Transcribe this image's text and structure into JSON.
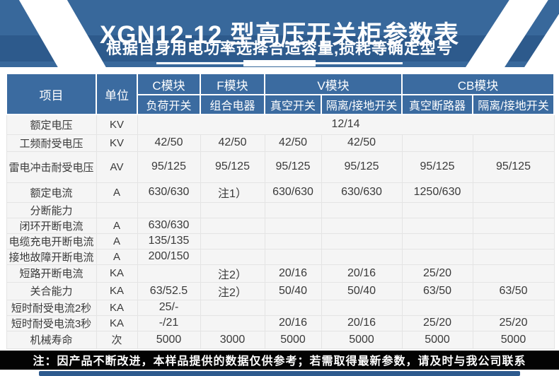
{
  "banner": {
    "title": "XGN12-12 型高压开关柜参数表",
    "subtitle": "根据自身用电功率选择合适容量,损耗等确定型号",
    "bg_color": "#38689b",
    "band_color": "#2d5a8c"
  },
  "table": {
    "header": {
      "item": "项目",
      "unit": "单位",
      "groups": [
        {
          "label": "C模块",
          "subs": [
            "负荷开关"
          ]
        },
        {
          "label": "F模块",
          "subs": [
            "组合电器"
          ]
        },
        {
          "label": "V模块",
          "subs": [
            "真空开关",
            "隔离/接地开关"
          ]
        },
        {
          "label": "CB模块",
          "subs": [
            "真空断路器",
            "隔离/接地开关"
          ]
        }
      ],
      "header_color": "#3b6ba0"
    },
    "rows": [
      {
        "label": "额定电压",
        "unit": "KV",
        "merged": "12/14"
      },
      {
        "label": "工频耐受电压",
        "unit": "KV",
        "values": [
          "42/50",
          "42/50",
          "42/50",
          "42/50",
          "",
          ""
        ]
      },
      {
        "label": "雷电冲击耐受电压",
        "unit": "AV",
        "values": [
          "95/125",
          "95/125",
          "95/125",
          "95/125",
          "95/125",
          "95/125"
        ]
      },
      {
        "label": "额定电流",
        "unit": "A",
        "values": [
          "630/630",
          "注1）",
          "630/630",
          "630/630",
          "1250/630",
          ""
        ]
      },
      {
        "label": "分断能力",
        "unit": "",
        "values": [
          "",
          "",
          "",
          "",
          "",
          ""
        ]
      },
      {
        "label": "闭环开断电流",
        "unit": "A",
        "values": [
          "630/630",
          "",
          "",
          "",
          "",
          ""
        ]
      },
      {
        "label": "电缆充电开断电流",
        "unit": "A",
        "values": [
          "135/135",
          "",
          "",
          "",
          "",
          ""
        ]
      },
      {
        "label": "接地故障开断电流",
        "unit": "A",
        "values": [
          "200/150",
          "",
          "",
          "",
          "",
          ""
        ]
      },
      {
        "label": "短路开断电流",
        "unit": "KA",
        "values": [
          "",
          "注2）",
          "20/16",
          "20/16",
          "25/20",
          ""
        ]
      },
      {
        "label": "关合能力",
        "unit": "KA",
        "values": [
          "63/52.5",
          "注2）",
          "50/40",
          "50/40",
          "63/50",
          "63/50"
        ]
      },
      {
        "label": "短时耐受电流2秒",
        "unit": "KA",
        "values": [
          "25/-",
          "",
          "",
          "",
          "",
          ""
        ]
      },
      {
        "label": "短时耐受电流3秒",
        "unit": "KA",
        "values": [
          "-/21",
          "",
          "20/16",
          "20/16",
          "25/20",
          "25/20"
        ]
      },
      {
        "label": "机械寿命",
        "unit": "次",
        "values": [
          "5000",
          "3000",
          "5000",
          "5000",
          "5000",
          "5000"
        ]
      }
    ]
  },
  "footer": {
    "note": "注：因产品不断改进，本样品提供的数据仅供参考；若需取得最新参数，请及时与我公司联系"
  }
}
